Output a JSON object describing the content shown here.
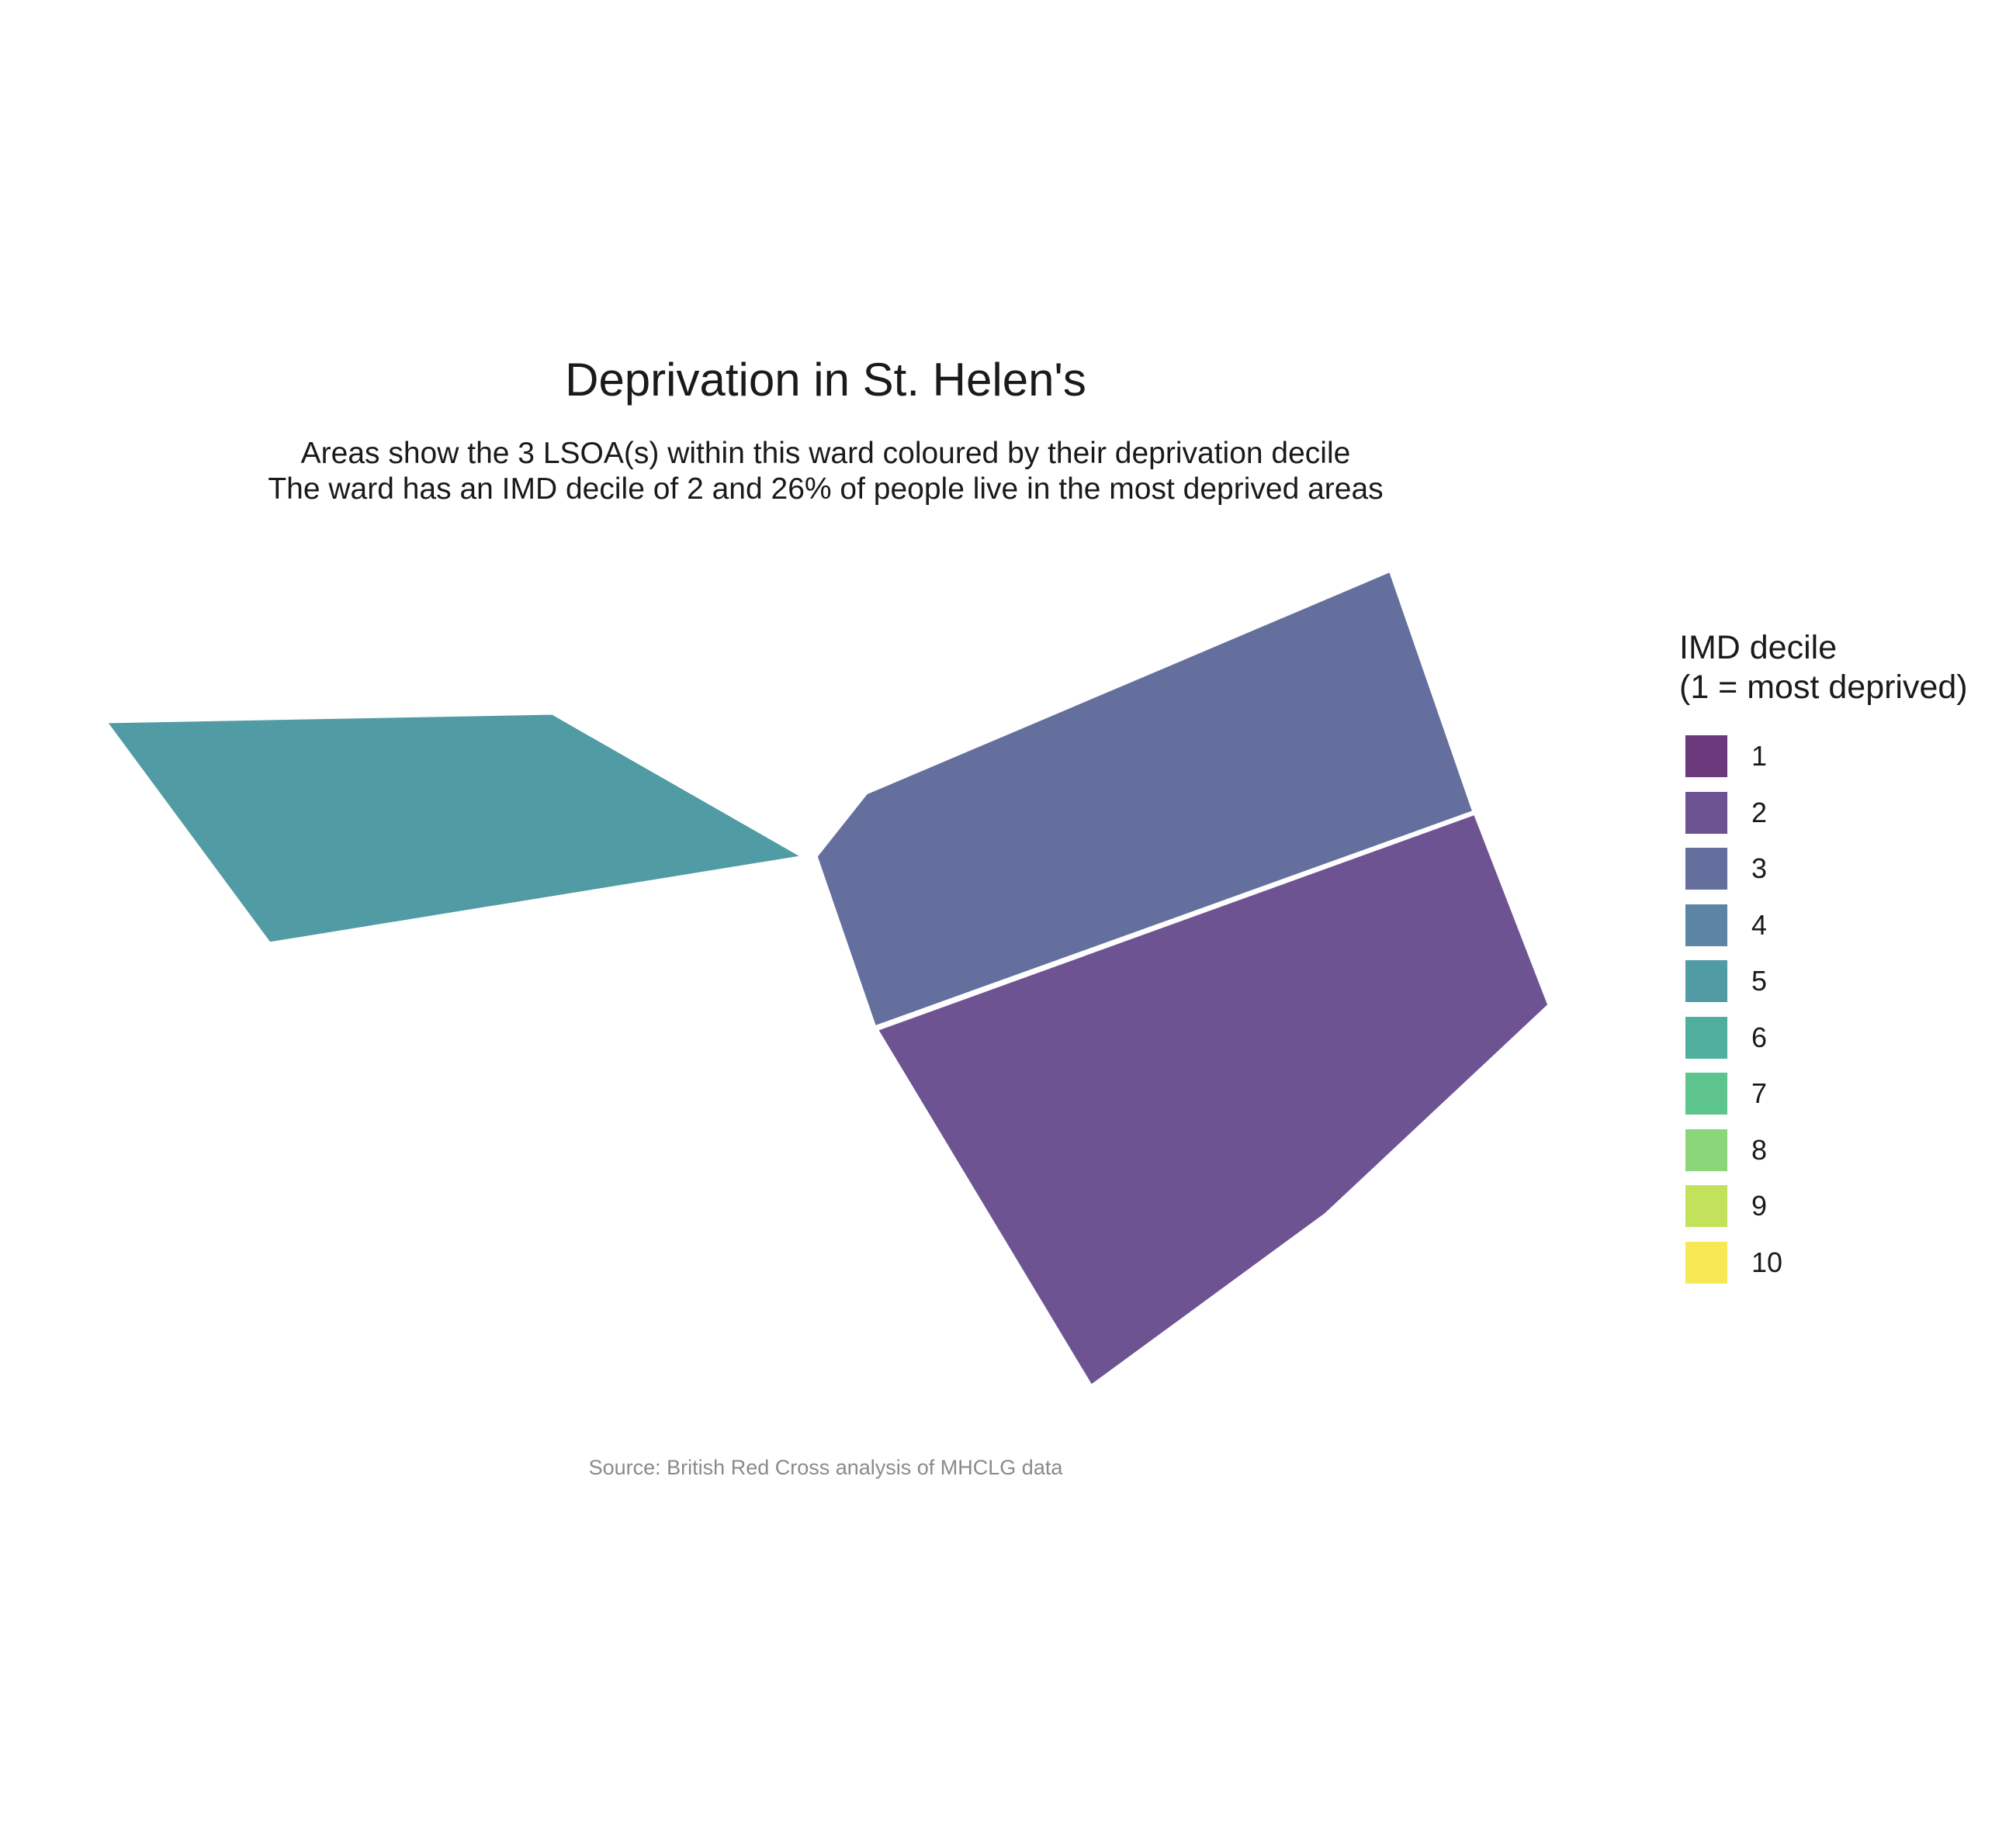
{
  "title": "Deprivation in St. Helen's",
  "subtitle_lines": [
    "Areas show the 3 LSOA(s) within this ward coloured by their deprivation decile",
    "The ward has an IMD decile of 2 and 26% of people live in the most deprived areas"
  ],
  "caption": "Source: British Red Cross analysis of MHCLG data",
  "legend": {
    "title_lines": [
      "IMD decile",
      "(1 = most deprived)"
    ],
    "items": [
      {
        "label": "1",
        "color": "#6a3a7d"
      },
      {
        "label": "2",
        "color": "#6e5393"
      },
      {
        "label": "3",
        "color": "#646f9e"
      },
      {
        "label": "4",
        "color": "#5b85a3"
      },
      {
        "label": "5",
        "color": "#519ba4"
      },
      {
        "label": "6",
        "color": "#4faf9c"
      },
      {
        "label": "7",
        "color": "#5dc48d"
      },
      {
        "label": "8",
        "color": "#8bd57a"
      },
      {
        "label": "9",
        "color": "#c3e25c"
      },
      {
        "label": "10",
        "color": "#f7e856"
      }
    ]
  },
  "map": {
    "areas": [
      {
        "name": "lsoa-west",
        "decile": 5,
        "color": "#519ba4"
      },
      {
        "name": "lsoa-northeast",
        "decile": 3,
        "color": "#646f9e"
      },
      {
        "name": "lsoa-southeast",
        "decile": 2,
        "color": "#6e5393"
      }
    ],
    "boundary_color": "#ffffff"
  }
}
